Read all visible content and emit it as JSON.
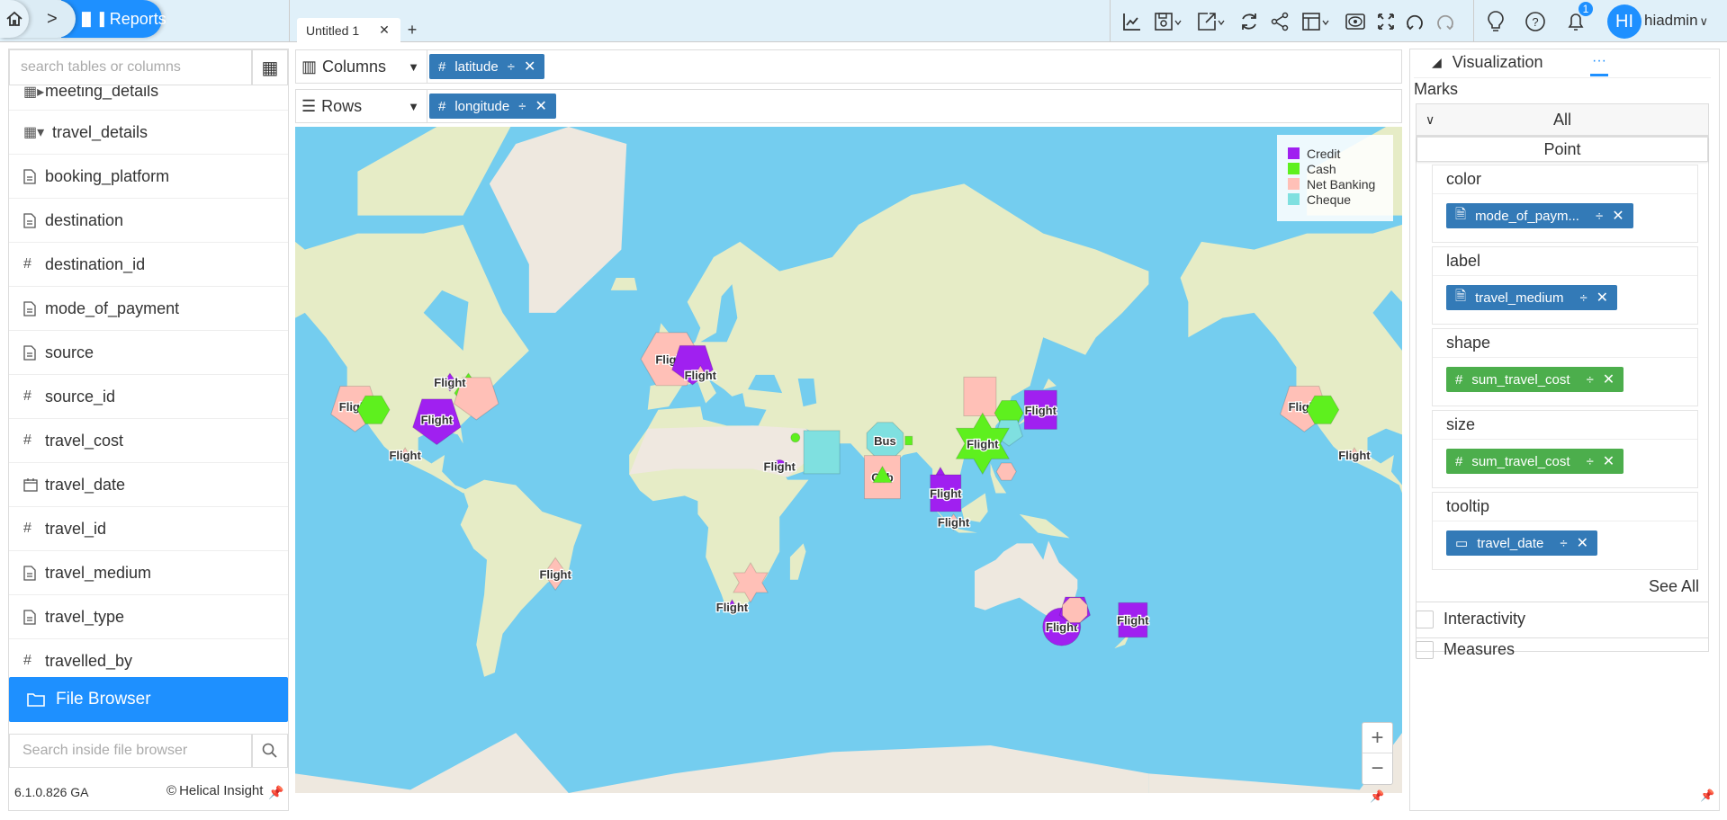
{
  "breadcrumb": {
    "home_icon": "home-icon",
    "separator": ">",
    "current": "Reports"
  },
  "tabs": [
    {
      "label": "Untitled 1",
      "close": "✕"
    }
  ],
  "add_tab": "+",
  "toolbar": {
    "icons": [
      "line-chart-icon",
      "save-icon",
      "export-icon",
      "refresh-icon",
      "share-icon",
      "layout-icon",
      "preview-icon",
      "fullscreen-icon",
      "undo-icon",
      "redo-icon"
    ]
  },
  "header": {
    "notification_count": "1",
    "avatar_initials": "HI",
    "username": "hiadmin"
  },
  "sidebar": {
    "search_placeholder": "search tables or columns",
    "tables": [
      {
        "name": "meeting_details"
      },
      {
        "name": "travel_details"
      }
    ],
    "fields": [
      {
        "name": "booking_platform",
        "type": "text"
      },
      {
        "name": "destination",
        "type": "text"
      },
      {
        "name": "destination_id",
        "type": "number"
      },
      {
        "name": "mode_of_payment",
        "type": "text"
      },
      {
        "name": "source",
        "type": "text"
      },
      {
        "name": "source_id",
        "type": "number"
      },
      {
        "name": "travel_cost",
        "type": "number"
      },
      {
        "name": "travel_date",
        "type": "date"
      },
      {
        "name": "travel_id",
        "type": "number"
      },
      {
        "name": "travel_medium",
        "type": "text"
      },
      {
        "name": "travel_type",
        "type": "text"
      },
      {
        "name": "travelled_by",
        "type": "number"
      }
    ],
    "file_browser_label": "File Browser",
    "file_search_placeholder": "Search inside file browser",
    "version": "6.1.0.826 GA",
    "brand": "Helical Insight"
  },
  "shelves": {
    "columns": {
      "label": "Columns",
      "pill": "latitude"
    },
    "rows": {
      "label": "Rows",
      "pill": "longitude"
    }
  },
  "legend": [
    {
      "label": "Credit",
      "color": "#a020f0"
    },
    {
      "label": "Cash",
      "color": "#5ef01e"
    },
    {
      "label": "Net Banking",
      "color": "#ffc0b7"
    },
    {
      "label": "Cheque",
      "color": "#7fe0e0"
    }
  ],
  "map_controls": {
    "zoom_in": "+",
    "zoom_out": "−"
  },
  "chart_data": {
    "type": "scatter",
    "projection": "web-mercator map",
    "points": [
      {
        "lon": -121,
        "lat": 37,
        "payment": "Net Banking",
        "shape": "pentagon",
        "size": 28,
        "label": "Flight"
      },
      {
        "lon": -114,
        "lat": 36,
        "payment": "Cash",
        "shape": "hexagon",
        "size": 18,
        "label": ""
      },
      {
        "lon": -90,
        "lat": 33,
        "payment": "Credit",
        "shape": "pentagon",
        "size": 28,
        "label": "Flight"
      },
      {
        "lon": -78,
        "lat": 41,
        "payment": "Cash",
        "shape": "diamond",
        "size": 22,
        "label": ""
      },
      {
        "lon": -75,
        "lat": 40,
        "payment": "Net Banking",
        "shape": "pentagon",
        "size": 26,
        "label": ""
      },
      {
        "lon": -85,
        "lat": 44,
        "payment": "Credit",
        "shape": "diamond",
        "size": 10,
        "label": "Flight"
      },
      {
        "lon": -102,
        "lat": 21,
        "payment": "Net Banking",
        "shape": "triangle",
        "size": 8,
        "label": "Flight"
      },
      {
        "lon": -45,
        "lat": -23,
        "payment": "Net Banking",
        "shape": "diamond",
        "size": 18,
        "label": "Flight"
      },
      {
        "lon": -1,
        "lat": 50,
        "payment": "Net Banking",
        "shape": "hexagon",
        "size": 34,
        "label": "Flight"
      },
      {
        "lon": 7,
        "lat": 49,
        "payment": "Credit",
        "shape": "pentagon",
        "size": 24,
        "label": ""
      },
      {
        "lon": 10,
        "lat": 46,
        "payment": "Net Banking",
        "shape": "triangle",
        "size": 10,
        "label": "Flight"
      },
      {
        "lon": 40,
        "lat": 17,
        "payment": "Credit",
        "shape": "circle",
        "size": 7,
        "label": "Flight"
      },
      {
        "lon": 46,
        "lat": 27,
        "payment": "Cash",
        "shape": "circle",
        "size": 5,
        "label": ""
      },
      {
        "lon": 56,
        "lat": 22,
        "payment": "Cheque",
        "shape": "square",
        "size": 20,
        "label": ""
      },
      {
        "lon": 80,
        "lat": 26,
        "payment": "Cheque",
        "shape": "octagon",
        "size": 22,
        "label": "Bus"
      },
      {
        "lon": 89,
        "lat": 26,
        "payment": "Cash",
        "shape": "square",
        "size": 4,
        "label": ""
      },
      {
        "lon": 79,
        "lat": 13,
        "payment": "Net Banking",
        "shape": "square",
        "size": 20,
        "label": "Cab"
      },
      {
        "lon": 79,
        "lat": 13,
        "payment": "Cash",
        "shape": "triangle",
        "size": 12,
        "label": ""
      },
      {
        "lon": 116,
        "lat": 40,
        "payment": "Net Banking",
        "shape": "square",
        "size": 18,
        "label": ""
      },
      {
        "lon": 127,
        "lat": 35,
        "payment": "Cash",
        "shape": "hexagon",
        "size": 16,
        "label": ""
      },
      {
        "lon": 127,
        "lat": 29,
        "payment": "Cheque",
        "shape": "pentagon",
        "size": 16,
        "label": ""
      },
      {
        "lon": 117,
        "lat": 25,
        "payment": "Cash",
        "shape": "star6",
        "size": 34,
        "label": "Flight"
      },
      {
        "lon": 126,
        "lat": 15,
        "payment": "Net Banking",
        "shape": "hexagon",
        "size": 11,
        "label": ""
      },
      {
        "lon": 139,
        "lat": 36,
        "payment": "Credit",
        "shape": "square",
        "size": 18,
        "label": "Flight"
      },
      {
        "lon": 101,
        "lat": 14,
        "payment": "Credit",
        "shape": "triangle",
        "size": 8,
        "label": ""
      },
      {
        "lon": 103,
        "lat": 7,
        "payment": "Credit",
        "shape": "square",
        "size": 17,
        "label": "Flight"
      },
      {
        "lon": 106,
        "lat": -4,
        "payment": "Net Banking",
        "shape": "diamond",
        "size": 9,
        "label": "Flight"
      },
      {
        "lon": 29,
        "lat": -26,
        "payment": "Net Banking",
        "shape": "star6",
        "size": 22,
        "label": ""
      },
      {
        "lon": 22,
        "lat": -34,
        "payment": "Credit",
        "shape": "triangle",
        "size": 8,
        "label": "Flight"
      },
      {
        "lon": 147,
        "lat": -40,
        "payment": "Credit",
        "shape": "circle",
        "size": 21,
        "label": "Flight"
      },
      {
        "lon": 152,
        "lat": -35,
        "payment": "Credit",
        "shape": "pentagon",
        "size": 18,
        "label": ""
      },
      {
        "lon": 152,
        "lat": -35,
        "payment": "Net Banking",
        "shape": "octagon",
        "size": 15,
        "label": ""
      },
      {
        "lon": 174,
        "lat": -38,
        "payment": "Credit",
        "shape": "square",
        "size": 16,
        "label": "Flight"
      }
    ]
  },
  "right_panel": {
    "tab_visualization": "Visualization",
    "tab_more": "···",
    "marks_title": "Marks",
    "marks_select": "All",
    "mark_type": "Point",
    "cards": [
      {
        "title": "color",
        "pill": "mode_of_paym...",
        "pill_icon": "text",
        "pill_color": "blue"
      },
      {
        "title": "label",
        "pill": "travel_medium",
        "pill_icon": "text",
        "pill_color": "blue"
      },
      {
        "title": "shape",
        "pill": "sum_travel_cost",
        "pill_icon": "number",
        "pill_color": "green"
      },
      {
        "title": "size",
        "pill": "sum_travel_cost",
        "pill_icon": "number",
        "pill_color": "green"
      },
      {
        "title": "tooltip",
        "pill": "travel_date",
        "pill_icon": "date",
        "pill_color": "blue"
      }
    ],
    "see_all": "See All",
    "sections": [
      "Interactivity",
      "Measures"
    ]
  }
}
